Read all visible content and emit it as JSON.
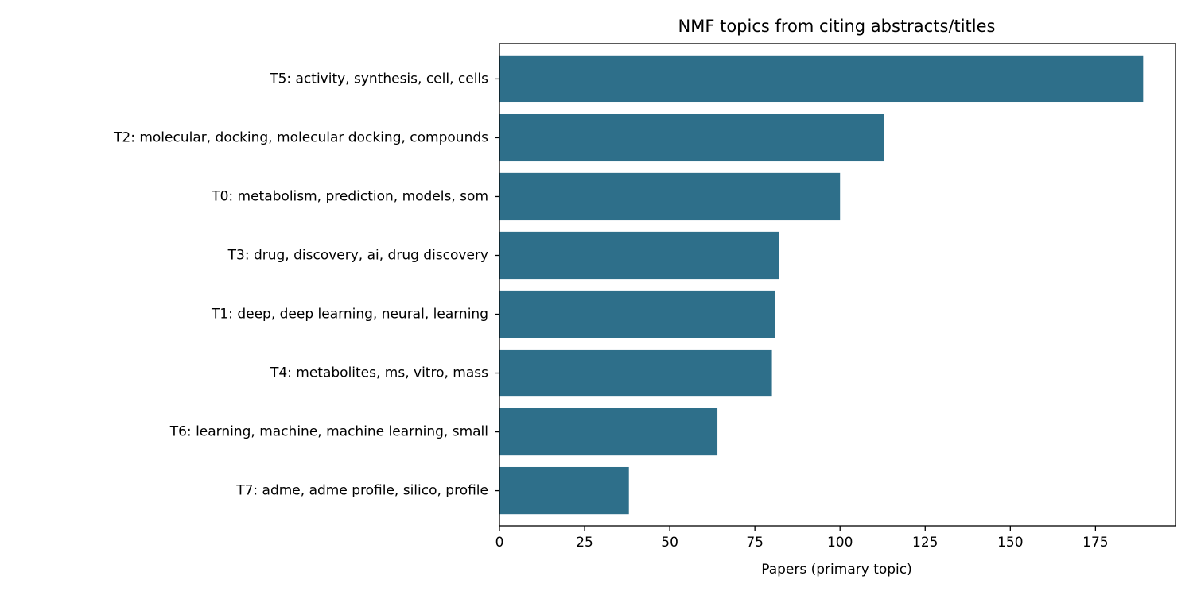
{
  "chart_data": {
    "type": "bar",
    "orientation": "horizontal",
    "title": "NMF topics from citing abstracts/titles",
    "xlabel": "Papers (primary topic)",
    "ylabel": "",
    "xlim": [
      0,
      198.5
    ],
    "xticks": [
      0,
      25,
      50,
      75,
      100,
      125,
      150,
      175
    ],
    "grid": false,
    "bar_color": "#2e6f8a",
    "categories": [
      "T5: activity, synthesis, cell, cells",
      "T2: molecular, docking, molecular docking, compounds",
      "T0: metabolism, prediction, models, som",
      "T3: drug, discovery, ai, drug discovery",
      "T1: deep, deep learning, neural, learning",
      "T4: metabolites, ms, vitro, mass",
      "T6: learning, machine, machine learning, small",
      "T7: adme, adme profile, silico, profile"
    ],
    "values": [
      189,
      113,
      100,
      82,
      81,
      80,
      64,
      38
    ]
  }
}
